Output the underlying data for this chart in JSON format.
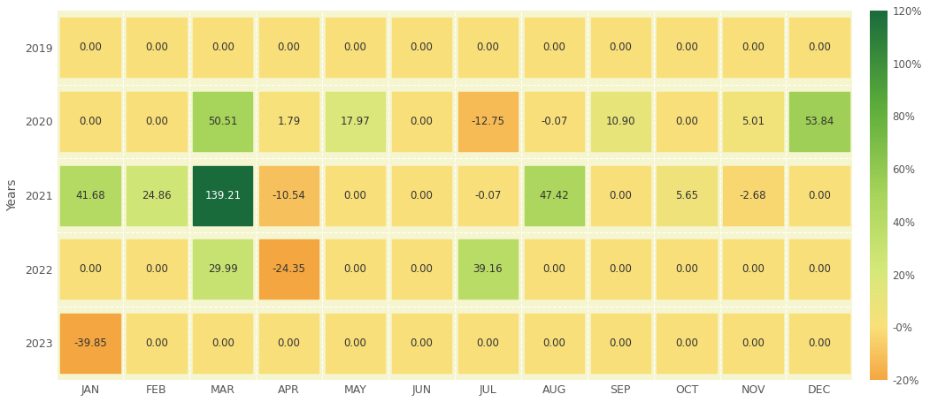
{
  "years": [
    2019,
    2020,
    2021,
    2022,
    2023
  ],
  "months": [
    "JAN",
    "FEB",
    "MAR",
    "APR",
    "MAY",
    "JUN",
    "JUL",
    "AUG",
    "SEP",
    "OCT",
    "NOV",
    "DEC"
  ],
  "values": [
    [
      0.0,
      0.0,
      0.0,
      0.0,
      0.0,
      0.0,
      0.0,
      0.0,
      0.0,
      0.0,
      0.0,
      0.0
    ],
    [
      0.0,
      0.0,
      50.51,
      1.79,
      17.97,
      0.0,
      -12.75,
      -0.07,
      10.9,
      0.0,
      5.01,
      53.84
    ],
    [
      41.68,
      24.86,
      139.21,
      -10.54,
      0.0,
      0.0,
      -0.07,
      47.42,
      0.0,
      5.65,
      -2.68,
      0.0
    ],
    [
      0.0,
      0.0,
      29.99,
      -24.35,
      0.0,
      0.0,
      39.16,
      0.0,
      0.0,
      0.0,
      0.0,
      0.0
    ],
    [
      -39.85,
      0.0,
      0.0,
      0.0,
      0.0,
      0.0,
      0.0,
      0.0,
      0.0,
      0.0,
      0.0,
      0.0
    ]
  ],
  "ylabel": "Years",
  "vmin": -20,
  "vmax": 120,
  "colorbar_ticks": [
    -20,
    0,
    20,
    40,
    60,
    80,
    100,
    120
  ],
  "colorbar_labels": [
    "-20%",
    "-0%",
    "20%",
    "40%",
    "60%",
    "80%",
    "100%",
    "120%"
  ],
  "background_color": "#ffffff",
  "text_color": "#555555",
  "grid_color": "#ffffff"
}
